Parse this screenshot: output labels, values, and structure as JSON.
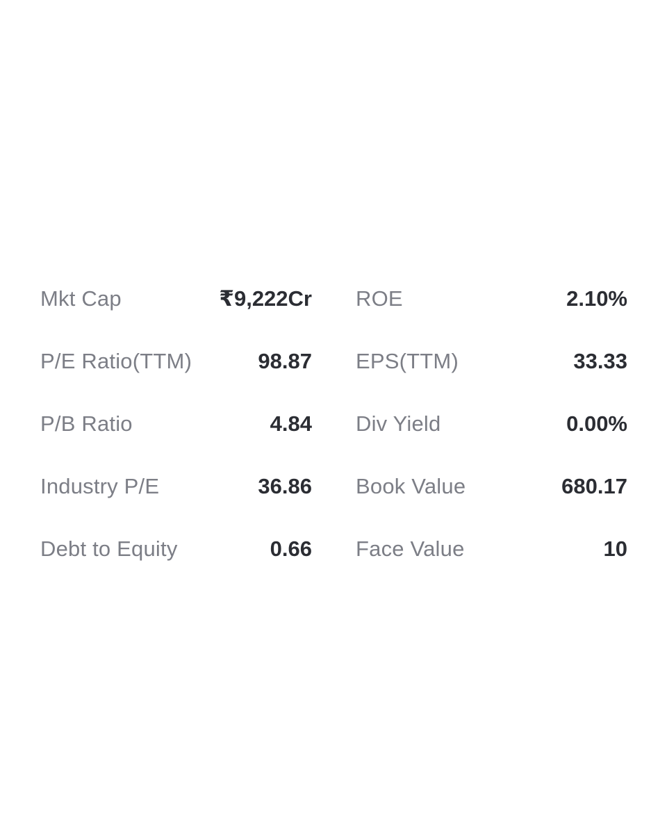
{
  "fundamentals": {
    "left": [
      {
        "label": "Mkt Cap",
        "value": "₹9,222Cr"
      },
      {
        "label": "P/E Ratio(TTM)",
        "value": "98.87"
      },
      {
        "label": "P/B Ratio",
        "value": "4.84"
      },
      {
        "label": "Industry P/E",
        "value": "36.86"
      },
      {
        "label": "Debt to Equity",
        "value": "0.66"
      }
    ],
    "right": [
      {
        "label": "ROE",
        "value": "2.10%"
      },
      {
        "label": "EPS(TTM)",
        "value": "33.33"
      },
      {
        "label": "Div Yield",
        "value": "0.00%"
      },
      {
        "label": "Book Value",
        "value": "680.17"
      },
      {
        "label": "Face Value",
        "value": "10"
      }
    ]
  },
  "colors": {
    "label": "#7c7e86",
    "value": "#2b2d33",
    "background": "#ffffff"
  }
}
